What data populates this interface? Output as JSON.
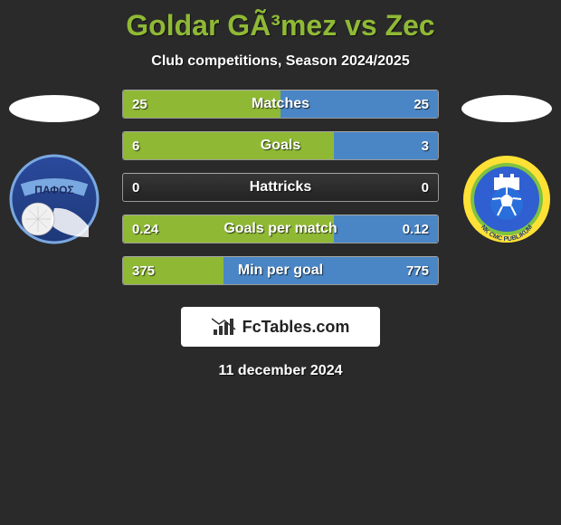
{
  "title": "Goldar GÃ³mez vs Zec",
  "subtitle": "Club competitions, Season 2024/2025",
  "colors": {
    "background": "#2a2a2a",
    "accent_left": "#8fb935",
    "accent_right": "#4a86c5",
    "title_color": "#8fb935",
    "text": "#ffffff"
  },
  "left_crest": {
    "name": "ΠΑΦΟΣ",
    "bg_top": "#2a4a9c",
    "bg_bottom": "#1e3878",
    "ring": "#7aa8e0",
    "ball": "#f0f0f0"
  },
  "right_crest": {
    "name": "NK CMC PUBLIKUM",
    "bg": "#ffe135",
    "inner": "#2f5fd0",
    "accent": "#7fc241",
    "castle": "#ffffff",
    "ball": "#2a6edc"
  },
  "stats": [
    {
      "label": "Matches",
      "left_val": "25",
      "right_val": "25",
      "left_pct": 50,
      "right_pct": 50
    },
    {
      "label": "Goals",
      "left_val": "6",
      "right_val": "3",
      "left_pct": 67,
      "right_pct": 33
    },
    {
      "label": "Hattricks",
      "left_val": "0",
      "right_val": "0",
      "left_pct": 0,
      "right_pct": 0
    },
    {
      "label": "Goals per match",
      "left_val": "0.24",
      "right_val": "0.12",
      "left_pct": 67,
      "right_pct": 33
    },
    {
      "label": "Min per goal",
      "left_val": "375",
      "right_val": "775",
      "left_pct": 32,
      "right_pct": 68
    }
  ],
  "brand": {
    "text": "FcTables.com"
  },
  "date": "11 december 2024"
}
